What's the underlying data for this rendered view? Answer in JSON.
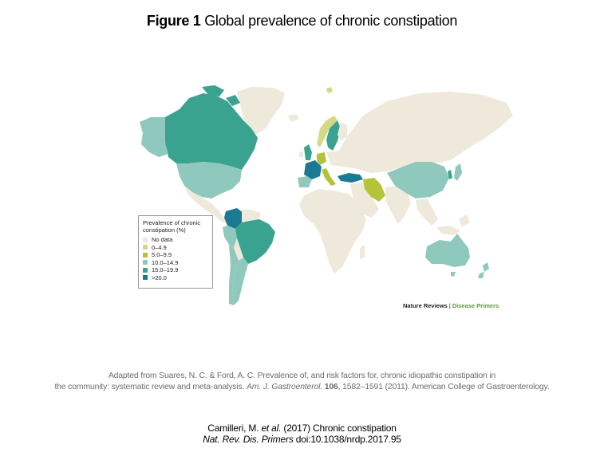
{
  "title": {
    "bold": "Figure 1",
    "rest": " Global prevalence of chronic constipation"
  },
  "legend": {
    "title": "Prevalence of chronic constipation (%)",
    "items": [
      {
        "label": "No data",
        "color": "#efe9dc"
      },
      {
        "label": "0–4.9",
        "color": "#d4d987"
      },
      {
        "label": "5.0–9.9",
        "color": "#b5c33a"
      },
      {
        "label": "10.0–14.9",
        "color": "#8fc9bd"
      },
      {
        "label": "15.0–19.9",
        "color": "#3aa38f"
      },
      {
        "label": ">20.0",
        "color": "#1a7a94"
      }
    ]
  },
  "credit": {
    "part1": "Nature Reviews",
    "separator": "|",
    "part2": "Disease Primers"
  },
  "adapted": {
    "line1": "Adapted from Suares, N. C. & Ford, A. C. Prevalence of, and risk factors for, chronic idiopathic constipation in",
    "line2_pre": "the community: systematic review and meta-analysis. ",
    "line2_journal": "Am. J. Gastroenterol.",
    "line2_vol": "106",
    "line2_post": ", 1582–1591 (2011). American College of Gastroenterology."
  },
  "citation": {
    "line1_pre": "Camilleri, M. ",
    "line1_etal": "et al.",
    "line1_post": " (2017) Chronic constipation",
    "line2_journal": "Nat. Rev. Dis. Primers",
    "line2_post": " doi:10.1038/nrdp.2017.95"
  },
  "map": {
    "countries": [
      {
        "name": "Canada",
        "category": "15.0–19.9"
      },
      {
        "name": "Alaska (United States)",
        "category": "10.0–14.9"
      },
      {
        "name": "United States",
        "category": "10.0–14.9"
      },
      {
        "name": "Colombia",
        "category": ">20.0"
      },
      {
        "name": "Brazil",
        "category": "15.0–19.9"
      },
      {
        "name": "Argentina",
        "category": "10.0–14.9"
      },
      {
        "name": "Peru",
        "category": "10.0–14.9"
      },
      {
        "name": "Chile",
        "category": "10.0–14.9"
      },
      {
        "name": "United Kingdom",
        "category": "15.0–19.9"
      },
      {
        "name": "France",
        "category": ">20.0"
      },
      {
        "name": "Norway",
        "category": "0–4.9"
      },
      {
        "name": "Sweden",
        "category": "15.0–19.9"
      },
      {
        "name": "Germany",
        "category": "5.0–9.9"
      },
      {
        "name": "Italy",
        "category": "5.0–9.9"
      },
      {
        "name": "Spain",
        "category": "10.0–14.9"
      },
      {
        "name": "Turkey",
        "category": ">20.0"
      },
      {
        "name": "Iran",
        "category": "5.0–9.9"
      },
      {
        "name": "China",
        "category": "10.0–14.9"
      },
      {
        "name": "South Korea",
        "category": "15.0–19.9"
      },
      {
        "name": "Japan",
        "category": "10.0–14.9"
      },
      {
        "name": "Australia",
        "category": "10.0–14.9"
      },
      {
        "name": "New Zealand",
        "category": "10.0–14.9"
      }
    ]
  }
}
